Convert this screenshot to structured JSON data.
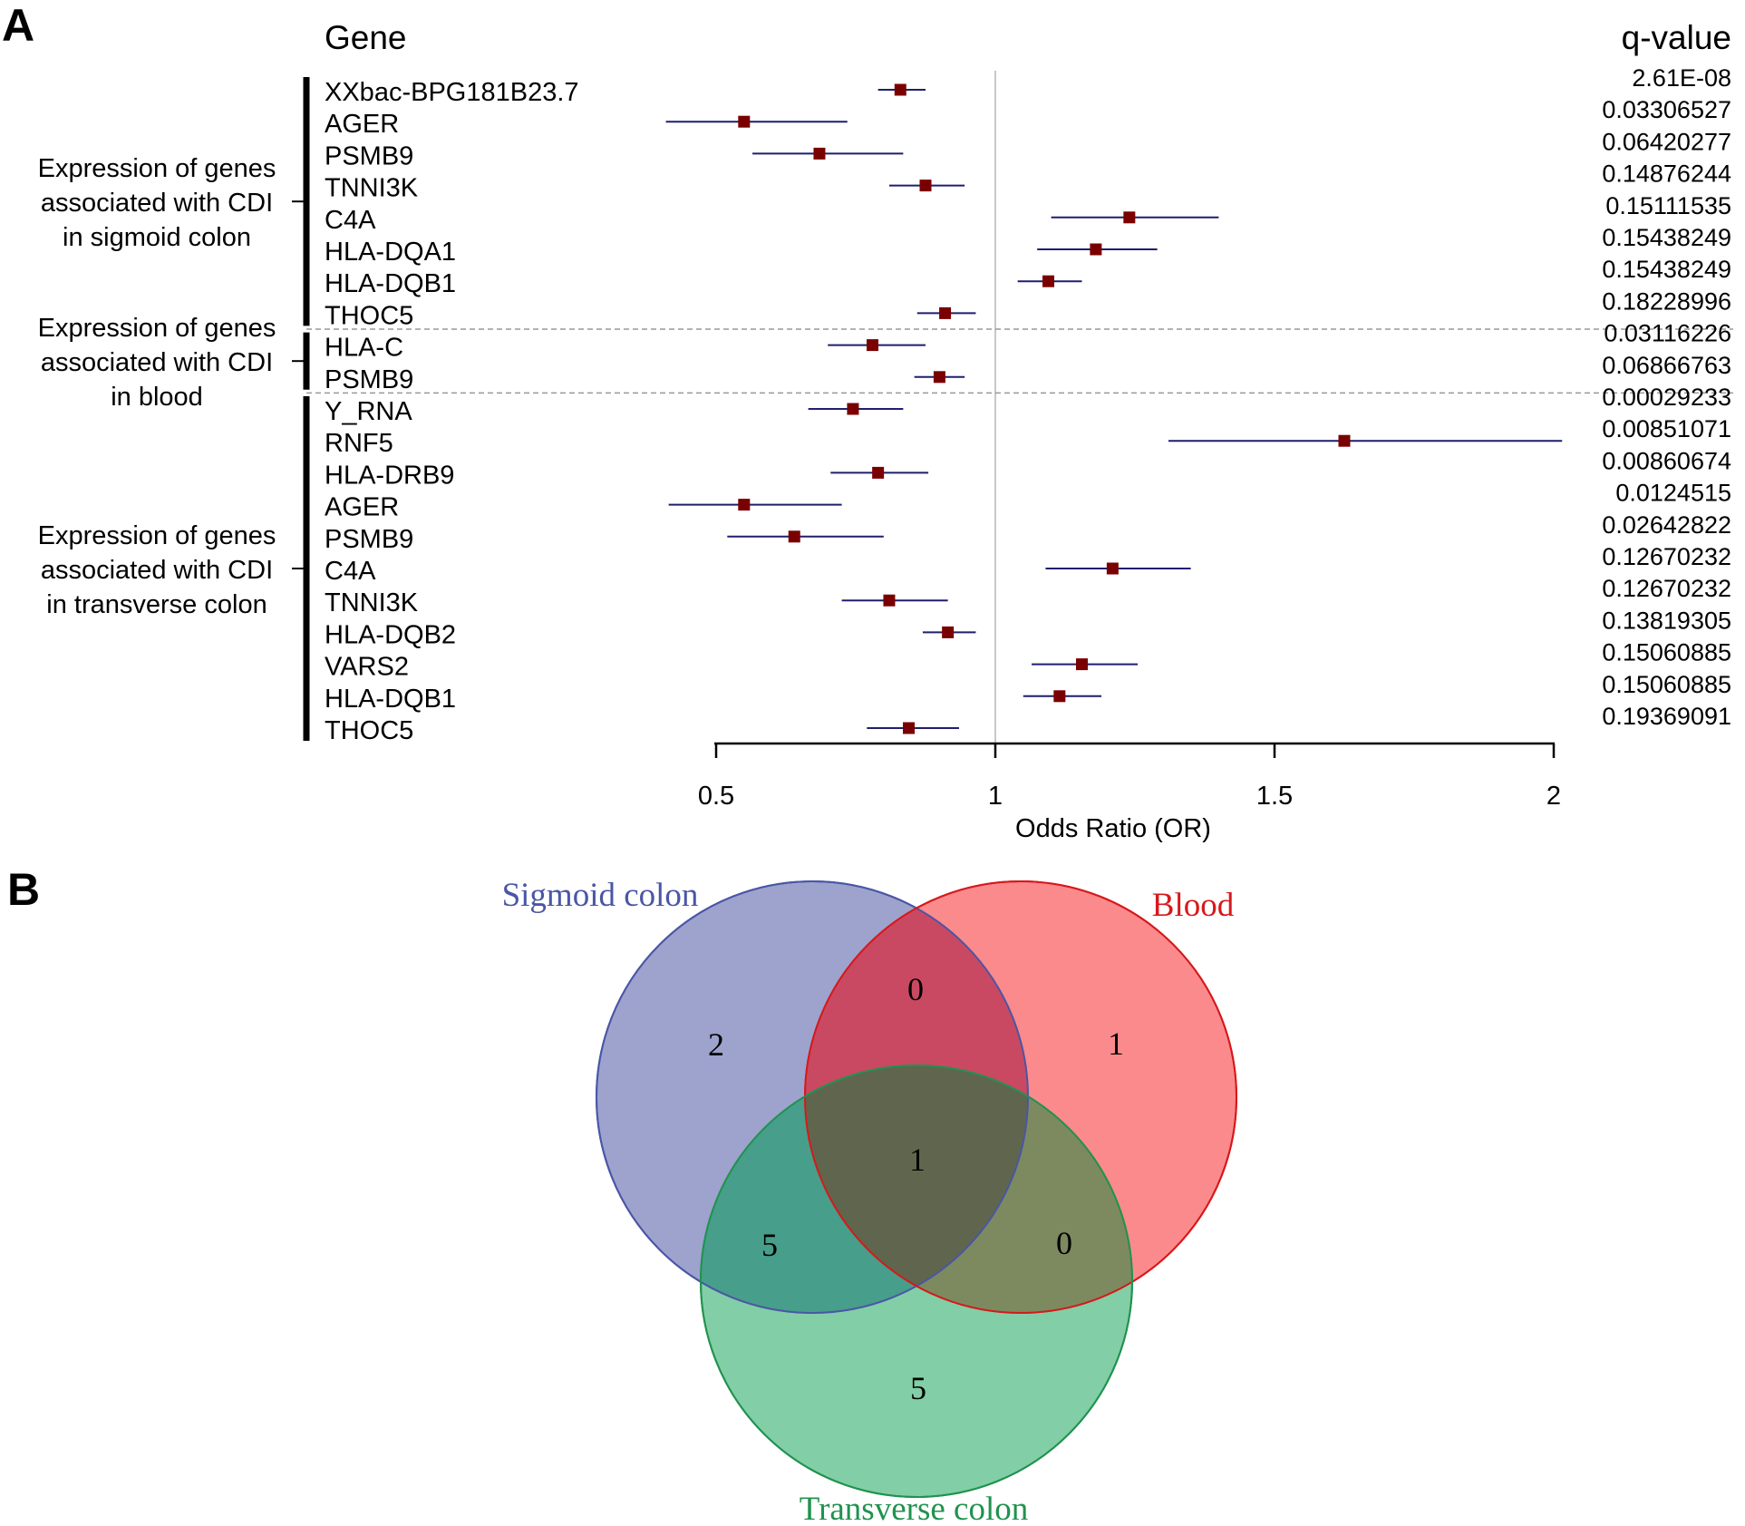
{
  "panel_labels": {
    "a": "A",
    "b": "B"
  },
  "chart_data": [
    {
      "type": "forest",
      "header_gene": "Gene",
      "header_q": "q-value",
      "xlabel": "Odds Ratio (OR)",
      "xlim": [
        0.5,
        2
      ],
      "ticks": [
        {
          "v": 0.5,
          "label": "0.5"
        },
        {
          "v": 1,
          "label": "1"
        },
        {
          "v": 1.5,
          "label": "1.5"
        },
        {
          "v": 2,
          "label": "2"
        }
      ],
      "reference_line": 1,
      "groups": [
        {
          "lines": [
            "Expression of genes",
            "associated with CDI",
            "in sigmoid colon"
          ],
          "start": 0,
          "end": 7
        },
        {
          "lines": [
            "Expression of genes",
            "associated with CDI",
            "in blood"
          ],
          "start": 8,
          "end": 9
        },
        {
          "lines": [
            "Expression of genes",
            "associated with CDI",
            "in transverse colon"
          ],
          "start": 10,
          "end": 20
        }
      ],
      "rows": [
        {
          "gene": "XXbac-BPG181B23.7",
          "or": 0.83,
          "lo": 0.79,
          "hi": 0.875,
          "q": "2.61E-08"
        },
        {
          "gene": "AGER",
          "or": 0.55,
          "lo": 0.41,
          "hi": 0.735,
          "q": "0.03306527"
        },
        {
          "gene": "PSMB9",
          "or": 0.685,
          "lo": 0.565,
          "hi": 0.835,
          "q": "0.06420277"
        },
        {
          "gene": "TNNI3K",
          "or": 0.875,
          "lo": 0.81,
          "hi": 0.945,
          "q": "0.14876244"
        },
        {
          "gene": "C4A",
          "or": 1.24,
          "lo": 1.1,
          "hi": 1.4,
          "q": "0.15111535"
        },
        {
          "gene": "HLA-DQA1",
          "or": 1.18,
          "lo": 1.075,
          "hi": 1.29,
          "q": "0.15438249"
        },
        {
          "gene": "HLA-DQB1",
          "or": 1.095,
          "lo": 1.04,
          "hi": 1.155,
          "q": "0.15438249"
        },
        {
          "gene": "THOC5",
          "or": 0.91,
          "lo": 0.86,
          "hi": 0.965,
          "q": "0.18228996"
        },
        {
          "gene": "HLA-C",
          "or": 0.78,
          "lo": 0.7,
          "hi": 0.875,
          "q": "0.03116226"
        },
        {
          "gene": "PSMB9",
          "or": 0.9,
          "lo": 0.855,
          "hi": 0.945,
          "q": "0.06866763"
        },
        {
          "gene": "Y_RNA",
          "or": 0.745,
          "lo": 0.665,
          "hi": 0.835,
          "q": "0.00029233"
        },
        {
          "gene": "RNF5",
          "or": 1.625,
          "lo": 1.31,
          "hi": 2.015,
          "q": "0.00851071"
        },
        {
          "gene": "HLA-DRB9",
          "or": 0.79,
          "lo": 0.705,
          "hi": 0.88,
          "q": "0.00860674"
        },
        {
          "gene": "AGER",
          "or": 0.55,
          "lo": 0.415,
          "hi": 0.725,
          "q": "0.0124515"
        },
        {
          "gene": "PSMB9",
          "or": 0.64,
          "lo": 0.52,
          "hi": 0.8,
          "q": "0.02642822"
        },
        {
          "gene": "C4A",
          "or": 1.21,
          "lo": 1.09,
          "hi": 1.35,
          "q": "0.12670232"
        },
        {
          "gene": "TNNI3K",
          "or": 0.81,
          "lo": 0.725,
          "hi": 0.915,
          "q": "0.12670232"
        },
        {
          "gene": "HLA-DQB2",
          "or": 0.915,
          "lo": 0.87,
          "hi": 0.965,
          "q": "0.13819305"
        },
        {
          "gene": "VARS2",
          "or": 1.155,
          "lo": 1.065,
          "hi": 1.255,
          "q": "0.15060885"
        },
        {
          "gene": "HLA-DQB1",
          "or": 1.115,
          "lo": 1.05,
          "hi": 1.19,
          "q": "0.15060885"
        },
        {
          "gene": "THOC5",
          "or": 0.845,
          "lo": 0.77,
          "hi": 0.935,
          "q": "0.19369091"
        }
      ],
      "colors": {
        "point": "#7a0000",
        "ci": "#1f1f6e",
        "refline": "#c8c8c8",
        "separator": "#999999"
      }
    },
    {
      "type": "venn",
      "sets": [
        {
          "name": "Sigmoid colon",
          "color": "#4a56a6",
          "fill": "#9da3cd"
        },
        {
          "name": "Blood",
          "color": "#d6191b",
          "fill": "#fb7d80"
        },
        {
          "name": "Transverse colon",
          "color": "#21924f",
          "fill": "#7dccA0"
        }
      ],
      "regions": [
        {
          "id": "sigmoid_only",
          "label": "2"
        },
        {
          "id": "blood_only",
          "label": "1"
        },
        {
          "id": "transverse_only",
          "label": "5"
        },
        {
          "id": "sigmoid_blood",
          "label": "0"
        },
        {
          "id": "sigmoid_transverse",
          "label": "5"
        },
        {
          "id": "blood_transverse",
          "label": "0"
        },
        {
          "id": "all_three",
          "label": "1"
        }
      ]
    }
  ]
}
